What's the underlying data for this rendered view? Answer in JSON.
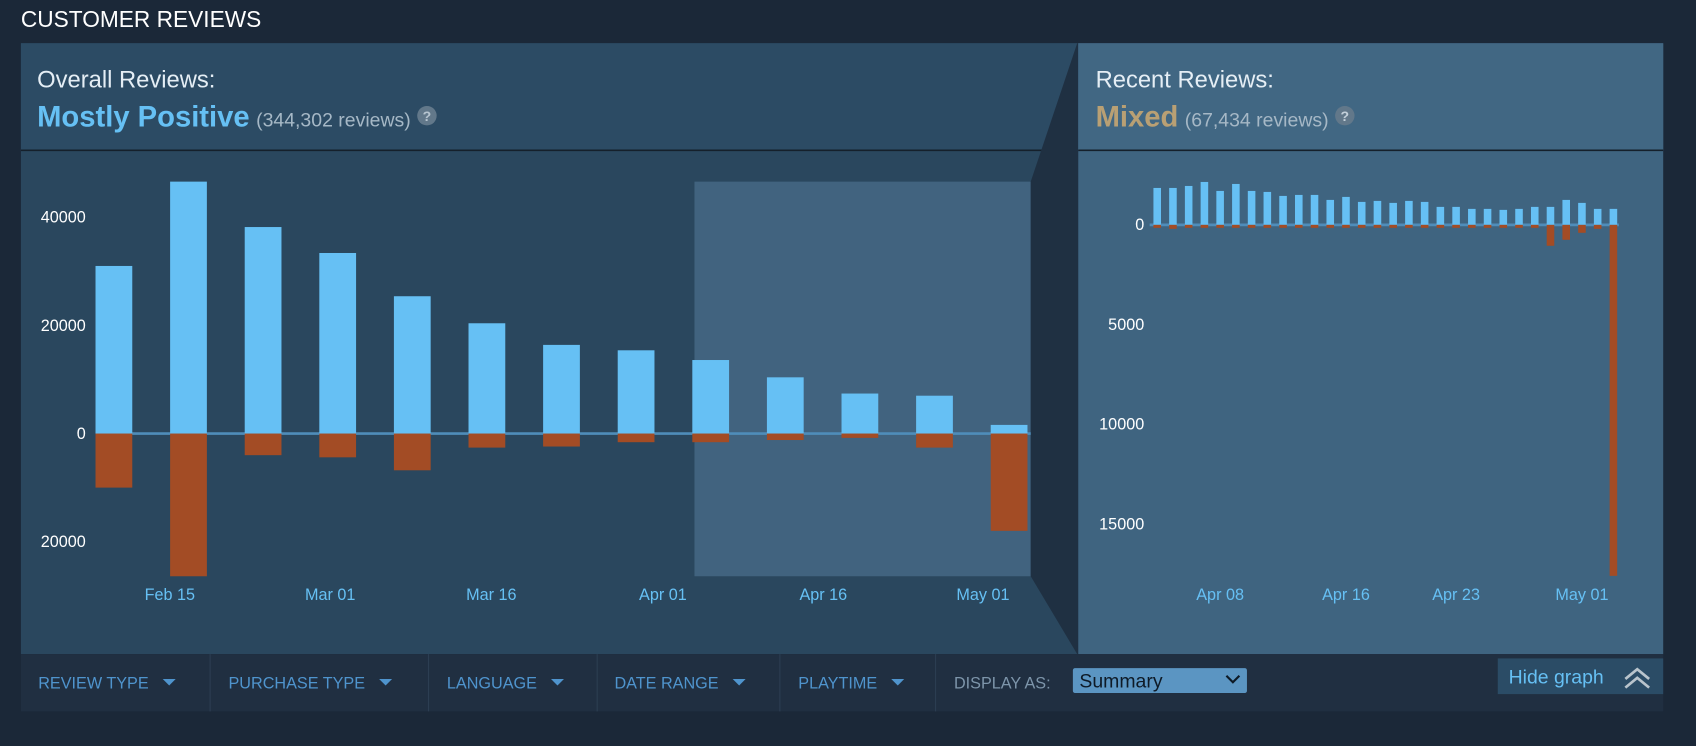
{
  "header": {
    "title": "CUSTOMER REVIEWS"
  },
  "overall": {
    "label": "Overall Reviews:",
    "rating": "Mostly Positive",
    "count": "(344,302 reviews)",
    "help": "?"
  },
  "recent": {
    "label": "Recent Reviews:",
    "rating": "Mixed",
    "count": "(67,434 reviews)",
    "help": "?"
  },
  "chart_data": [
    {
      "type": "bar",
      "categories": [
        null,
        null,
        null,
        null,
        null,
        null,
        null,
        null,
        null,
        null,
        null,
        null,
        null
      ],
      "series": [
        {
          "color": "#66c0f4",
          "values": [
            31000,
            46600,
            38200,
            33400,
            25400,
            20400,
            16400,
            15400,
            13600,
            10400,
            7400,
            7000,
            1600
          ]
        },
        {
          "color": "#a34c25",
          "values": [
            -10000,
            -26400,
            -4000,
            -4400,
            -6800,
            -2600,
            -2400,
            -1600,
            -1600,
            -1200,
            -800,
            -2600,
            -18000
          ]
        }
      ],
      "ylim": [
        -28000,
        48000
      ],
      "yticks": [
        40000,
        20000,
        0,
        {
          "value": -20000,
          "label": "20000"
        }
      ],
      "xticks": [
        {
          "value": 0.75,
          "label": "Feb 15"
        },
        {
          "value": 2.9,
          "label": "Mar 01"
        },
        {
          "value": 5.06,
          "label": "Mar 16"
        },
        {
          "value": 7.36,
          "label": "Apr 01"
        },
        {
          "value": 9.51,
          "label": "Apr 16"
        },
        {
          "value": 11.65,
          "label": "May 01"
        }
      ]
    },
    {
      "type": "bar",
      "categories": [
        null,
        null,
        null,
        null,
        null,
        null,
        null,
        null,
        null,
        null,
        null,
        null,
        null,
        null,
        null,
        null,
        null,
        null,
        null,
        null,
        null,
        null,
        null,
        null,
        null,
        null,
        null,
        null,
        null,
        null
      ],
      "series": [
        {
          "color": "#66c0f4",
          "values": [
            1850,
            1850,
            1950,
            2150,
            1700,
            2050,
            1700,
            1650,
            1450,
            1500,
            1500,
            1250,
            1400,
            1150,
            1200,
            1100,
            1200,
            1150,
            900,
            900,
            800,
            800,
            750,
            800,
            900,
            900,
            1250,
            1100,
            800,
            800
          ]
        },
        {
          "color": "#a34c25",
          "values": [
            -150,
            -200,
            -150,
            -150,
            -150,
            -150,
            -150,
            -150,
            -150,
            -150,
            -150,
            -150,
            -150,
            -150,
            -150,
            -150,
            -150,
            -150,
            -150,
            -150,
            -150,
            -150,
            -150,
            -150,
            -150,
            -1050,
            -750,
            -400,
            -200,
            -17600
          ]
        }
      ],
      "ylim": [
        -18000,
        2600
      ],
      "yticks": [
        0,
        {
          "value": -5000,
          "label": "5000"
        },
        {
          "value": -10000,
          "label": "10000"
        },
        {
          "value": -15000,
          "label": "15000"
        }
      ],
      "xticks": [
        {
          "value": 4,
          "label": "Apr 08"
        },
        {
          "value": 12,
          "label": "Apr 16"
        },
        {
          "value": 19,
          "label": "Apr 23"
        },
        {
          "value": 27,
          "label": "May 01"
        }
      ]
    }
  ],
  "filters": {
    "items": [
      "REVIEW TYPE",
      "PURCHASE TYPE",
      "LANGUAGE",
      "DATE RANGE",
      "PLAYTIME"
    ],
    "display_label": "DISPLAY AS:",
    "display_value": "Summary",
    "hide_graph": "Hide graph"
  }
}
